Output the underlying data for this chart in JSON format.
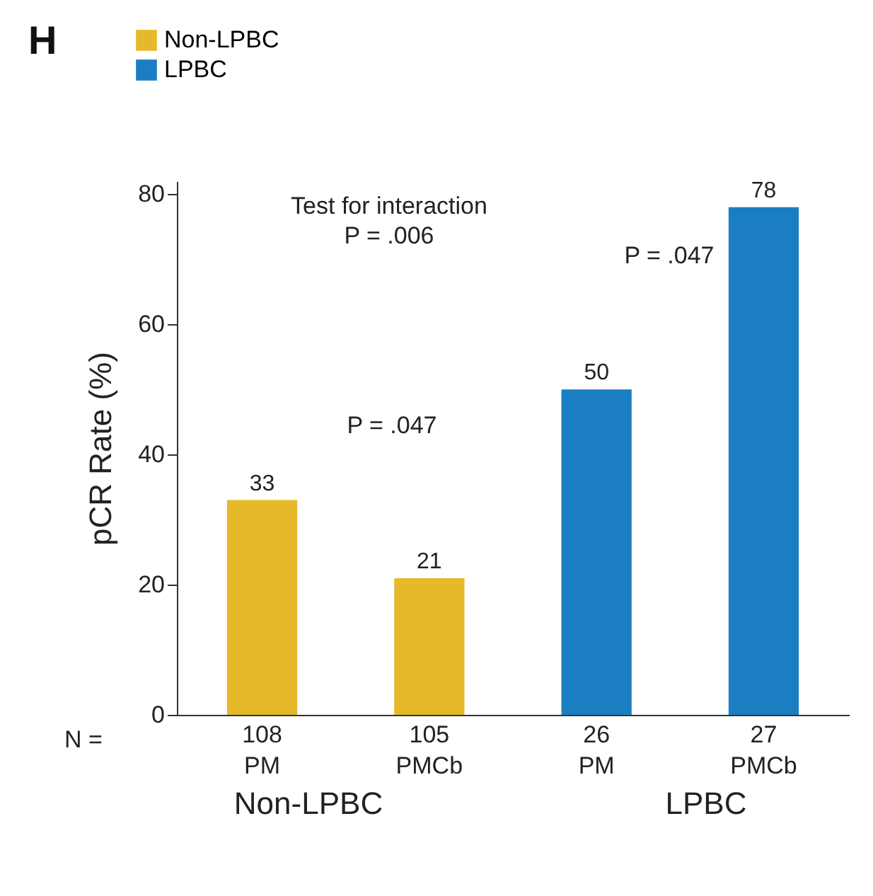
{
  "chart_data": {
    "type": "bar",
    "title": "H",
    "ylabel": "pCR Rate (%)",
    "categories": [
      "108\nPM",
      "105\nPMCb",
      "26\nPM",
      "27\nPMCb"
    ],
    "series": [
      {
        "name": "Non-LPBC",
        "color": "#e6b92a",
        "values": [
          33,
          21,
          null,
          null
        ]
      },
      {
        "name": "LPBC",
        "color": "#1b7ec2",
        "values": [
          null,
          null,
          50,
          78
        ]
      }
    ],
    "ylim": [
      0,
      82
    ],
    "yticks": [
      0,
      20,
      40,
      60,
      80
    ],
    "data_labels": true,
    "legend": "top left",
    "grid": false,
    "annotations": [
      "Test for interaction\nP = .006",
      "P = .047",
      "P = .047",
      "N =",
      "Non-LPBC",
      "LPBC"
    ]
  }
}
